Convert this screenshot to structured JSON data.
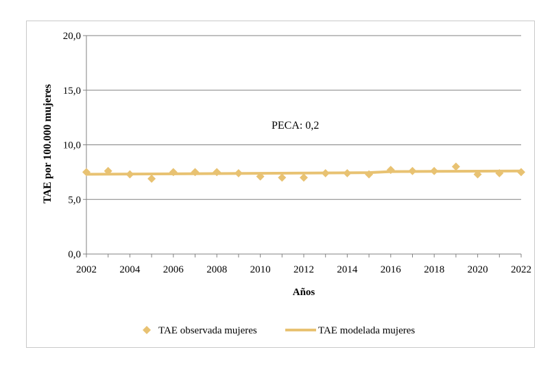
{
  "chart_data": {
    "type": "line",
    "ylabel": "TAE por 100.000 mujeres",
    "xlabel": "Años",
    "ylim": [
      0,
      20
    ],
    "yticks": [
      "0,0",
      "5,0",
      "10,0",
      "15,0",
      "20,0"
    ],
    "ytick_values": [
      0,
      5,
      10,
      15,
      20
    ],
    "xlim": [
      2002,
      2022
    ],
    "xticks": [
      "2002",
      "2004",
      "2006",
      "2008",
      "2010",
      "2012",
      "2014",
      "2016",
      "2018",
      "2020",
      "2022"
    ],
    "xtick_values": [
      2002,
      2004,
      2006,
      2008,
      2010,
      2012,
      2014,
      2016,
      2018,
      2020,
      2022
    ],
    "grid": true,
    "annotation": "PECA: 0,2",
    "series": [
      {
        "name": "TAE observada mujeres",
        "kind": "marker",
        "color": "#e8c272",
        "x": [
          2002,
          2003,
          2004,
          2005,
          2006,
          2007,
          2008,
          2009,
          2010,
          2011,
          2012,
          2013,
          2014,
          2015,
          2016,
          2017,
          2018,
          2019,
          2020,
          2021,
          2022
        ],
        "values": [
          7.5,
          7.6,
          7.3,
          6.9,
          7.5,
          7.5,
          7.5,
          7.4,
          7.1,
          7.0,
          7.0,
          7.4,
          7.4,
          7.3,
          7.7,
          7.6,
          7.6,
          8.0,
          7.3,
          7.4,
          7.5
        ]
      },
      {
        "name": "TAE modelada mujeres",
        "kind": "line",
        "color": "#e8c272",
        "x": [
          2002,
          2015,
          2016,
          2022
        ],
        "values": [
          7.3,
          7.45,
          7.55,
          7.6
        ]
      }
    ],
    "legend": [
      {
        "label": "TAE observada mujeres",
        "symbol": "diamond"
      },
      {
        "label": "TAE modelada mujeres",
        "symbol": "line"
      }
    ]
  }
}
